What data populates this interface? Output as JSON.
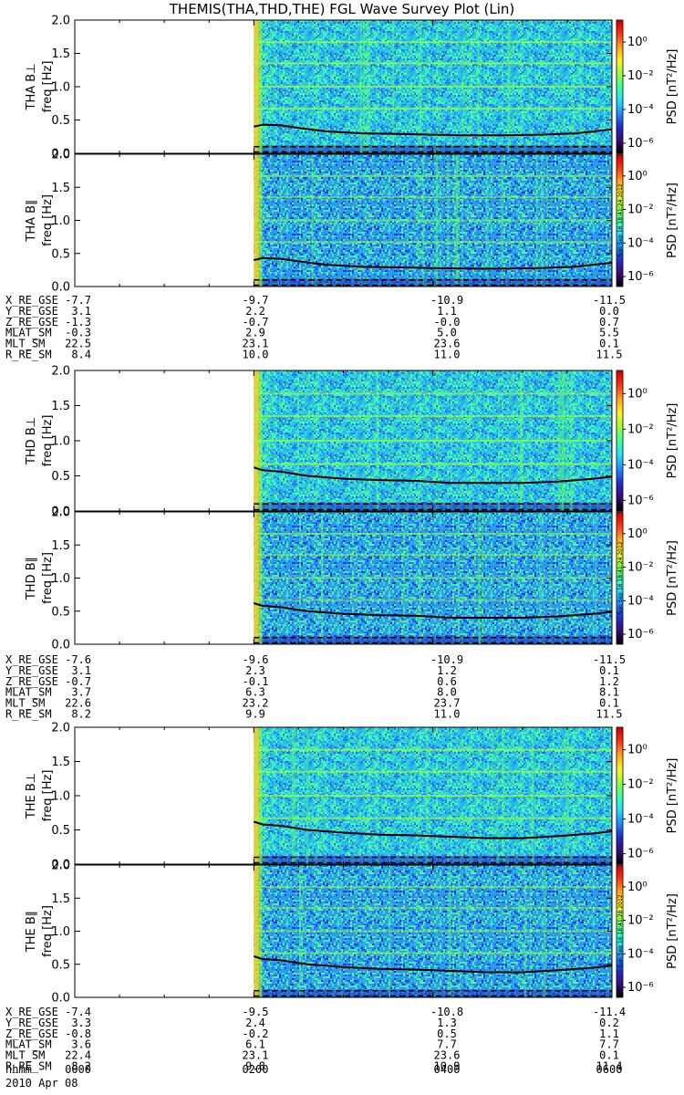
{
  "title": "THEMIS(THA,THD,THE) FGL Wave Survey Plot (Lin)",
  "colorbar": {
    "label_prefix": "PSD",
    "label_units_text": "[nT²/Hz]",
    "ticks": [
      "10⁰",
      "10⁻²",
      "10⁻⁴",
      "10⁻⁶"
    ],
    "tick_values": [
      1,
      0.01,
      0.0001,
      1e-06
    ],
    "colors": [
      "#000000",
      "#3a0a78",
      "#1e2fc8",
      "#1f8fff",
      "#24e0ff",
      "#40ff9a",
      "#9aff3a",
      "#fff02a",
      "#ffa01c",
      "#ff3014",
      "#c80000"
    ]
  },
  "stamps": [
    "Sun Sep 16 18:41:24 2012",
    "Sun Sep 16 18:41:24 2012",
    "Sun Sep 16 18:41:28 2012"
  ],
  "time_axis": {
    "labels": [
      "0000",
      "0200",
      "0400",
      "0600"
    ],
    "row_header": "hhmm",
    "date": "2010 Apr 08"
  },
  "chart_data": {
    "type": "heatmap",
    "data_start_hour": 2.0,
    "xrange_hours": [
      0,
      6
    ],
    "yrange_hz": [
      0,
      2
    ],
    "yticks": [
      "0.0",
      "0.5",
      "1.0",
      "1.5",
      "2.0"
    ],
    "ylabel": "freq [Hz]",
    "panels": [
      {
        "probe": "THA",
        "component": "B⊥",
        "ylabel_probe": "THA B⊥",
        "gyro_line_hz": [
          [
            2.0,
            0.4
          ],
          [
            2.1,
            0.43
          ],
          [
            2.3,
            0.42
          ],
          [
            2.5,
            0.38
          ],
          [
            2.8,
            0.33
          ],
          [
            3.2,
            0.3
          ],
          [
            3.6,
            0.29
          ],
          [
            4.0,
            0.28
          ],
          [
            4.4,
            0.27
          ],
          [
            4.8,
            0.27
          ],
          [
            5.2,
            0.28
          ],
          [
            5.6,
            0.3
          ],
          [
            6.0,
            0.36
          ]
        ]
      },
      {
        "probe": "THA",
        "component": "B∥",
        "ylabel_probe": "THA B∥",
        "gyro_line_hz": [
          [
            2.0,
            0.4
          ],
          [
            2.1,
            0.43
          ],
          [
            2.3,
            0.42
          ],
          [
            2.5,
            0.38
          ],
          [
            2.8,
            0.33
          ],
          [
            3.2,
            0.3
          ],
          [
            3.6,
            0.29
          ],
          [
            4.0,
            0.28
          ],
          [
            4.4,
            0.27
          ],
          [
            4.8,
            0.27
          ],
          [
            5.2,
            0.28
          ],
          [
            5.6,
            0.3
          ],
          [
            6.0,
            0.36
          ]
        ]
      },
      {
        "probe": "THD",
        "component": "B⊥",
        "ylabel_probe": "THD B⊥",
        "gyro_line_hz": [
          [
            2.0,
            0.62
          ],
          [
            2.1,
            0.58
          ],
          [
            2.3,
            0.56
          ],
          [
            2.6,
            0.5
          ],
          [
            3.0,
            0.46
          ],
          [
            3.4,
            0.44
          ],
          [
            3.8,
            0.43
          ],
          [
            4.2,
            0.4
          ],
          [
            4.6,
            0.4
          ],
          [
            5.0,
            0.4
          ],
          [
            5.4,
            0.42
          ],
          [
            5.8,
            0.46
          ],
          [
            6.0,
            0.49
          ]
        ]
      },
      {
        "probe": "THD",
        "component": "B∥",
        "ylabel_probe": "THD B∥",
        "gyro_line_hz": [
          [
            2.0,
            0.62
          ],
          [
            2.1,
            0.58
          ],
          [
            2.3,
            0.56
          ],
          [
            2.6,
            0.5
          ],
          [
            3.0,
            0.46
          ],
          [
            3.4,
            0.44
          ],
          [
            3.8,
            0.43
          ],
          [
            4.2,
            0.4
          ],
          [
            4.6,
            0.4
          ],
          [
            5.0,
            0.4
          ],
          [
            5.4,
            0.42
          ],
          [
            5.8,
            0.46
          ],
          [
            6.0,
            0.49
          ]
        ]
      },
      {
        "probe": "THE",
        "component": "B⊥",
        "ylabel_probe": "THE B⊥",
        "gyro_line_hz": [
          [
            2.0,
            0.62
          ],
          [
            2.1,
            0.58
          ],
          [
            2.3,
            0.56
          ],
          [
            2.6,
            0.5
          ],
          [
            3.0,
            0.46
          ],
          [
            3.4,
            0.43
          ],
          [
            3.8,
            0.42
          ],
          [
            4.2,
            0.4
          ],
          [
            4.6,
            0.38
          ],
          [
            5.0,
            0.38
          ],
          [
            5.4,
            0.41
          ],
          [
            5.8,
            0.45
          ],
          [
            6.0,
            0.48
          ]
        ]
      },
      {
        "probe": "THE",
        "component": "B∥",
        "ylabel_probe": "THE B∥",
        "gyro_line_hz": [
          [
            2.0,
            0.62
          ],
          [
            2.1,
            0.58
          ],
          [
            2.3,
            0.56
          ],
          [
            2.6,
            0.5
          ],
          [
            3.0,
            0.46
          ],
          [
            3.4,
            0.43
          ],
          [
            3.8,
            0.42
          ],
          [
            4.2,
            0.4
          ],
          [
            4.6,
            0.38
          ],
          [
            5.0,
            0.38
          ],
          [
            5.4,
            0.41
          ],
          [
            5.8,
            0.45
          ],
          [
            6.0,
            0.48
          ]
        ]
      }
    ]
  },
  "ephemeris": [
    {
      "probe": "THA",
      "rows": [
        {
          "label": "X_RE_GSE",
          "values": [
            "-7.7",
            "-9.7",
            "-10.9",
            "-11.5"
          ]
        },
        {
          "label": "Y_RE_GSE",
          "values": [
            "3.1",
            "2.2",
            "1.1",
            "0.0"
          ]
        },
        {
          "label": "Z_RE_GSE",
          "values": [
            "-1.3",
            "-0.7",
            "-0.0",
            "0.7"
          ]
        },
        {
          "label": "MLAT_SM",
          "values": [
            "-0.3",
            "2.9",
            "5.0",
            "5.5"
          ]
        },
        {
          "label": "MLT_SM",
          "values": [
            "22.5",
            "23.1",
            "23.6",
            "0.1"
          ]
        },
        {
          "label": "R_RE_SM",
          "values": [
            "8.4",
            "10.0",
            "11.0",
            "11.5"
          ]
        }
      ]
    },
    {
      "probe": "THD",
      "rows": [
        {
          "label": "X_RE_GSE",
          "values": [
            "-7.6",
            "-9.6",
            "-10.9",
            "-11.5"
          ]
        },
        {
          "label": "Y_RE_GSE",
          "values": [
            "3.1",
            "2.3",
            "1.2",
            "0.1"
          ]
        },
        {
          "label": "Z_RE_GSE",
          "values": [
            "-0.7",
            "-0.1",
            "0.6",
            "1.2"
          ]
        },
        {
          "label": "MLAT_SM",
          "values": [
            "3.7",
            "6.3",
            "8.0",
            "8.1"
          ]
        },
        {
          "label": "MLT_SM",
          "values": [
            "22.6",
            "23.2",
            "23.7",
            "0.1"
          ]
        },
        {
          "label": "R_RE_SM",
          "values": [
            "8.2",
            "9.9",
            "11.0",
            "11.5"
          ]
        }
      ]
    },
    {
      "probe": "THE",
      "rows": [
        {
          "label": "X_RE_GSE",
          "values": [
            "-7.4",
            "-9.5",
            "-10.8",
            "-11.4"
          ]
        },
        {
          "label": "Y_RE_GSE",
          "values": [
            "3.3",
            "2.4",
            "1.3",
            "0.2"
          ]
        },
        {
          "label": "Z_RE_GSE",
          "values": [
            "-0.8",
            "-0.2",
            "0.5",
            "1.1"
          ]
        },
        {
          "label": "MLAT_SM",
          "values": [
            "3.6",
            "6.1",
            "7.7",
            "7.7"
          ]
        },
        {
          "label": "MLT_SM",
          "values": [
            "22.4",
            "23.1",
            "23.6",
            "0.1"
          ]
        },
        {
          "label": "R_RE_SM",
          "values": [
            "8.2",
            "9.8",
            "10.9",
            "11.4"
          ]
        }
      ]
    }
  ]
}
